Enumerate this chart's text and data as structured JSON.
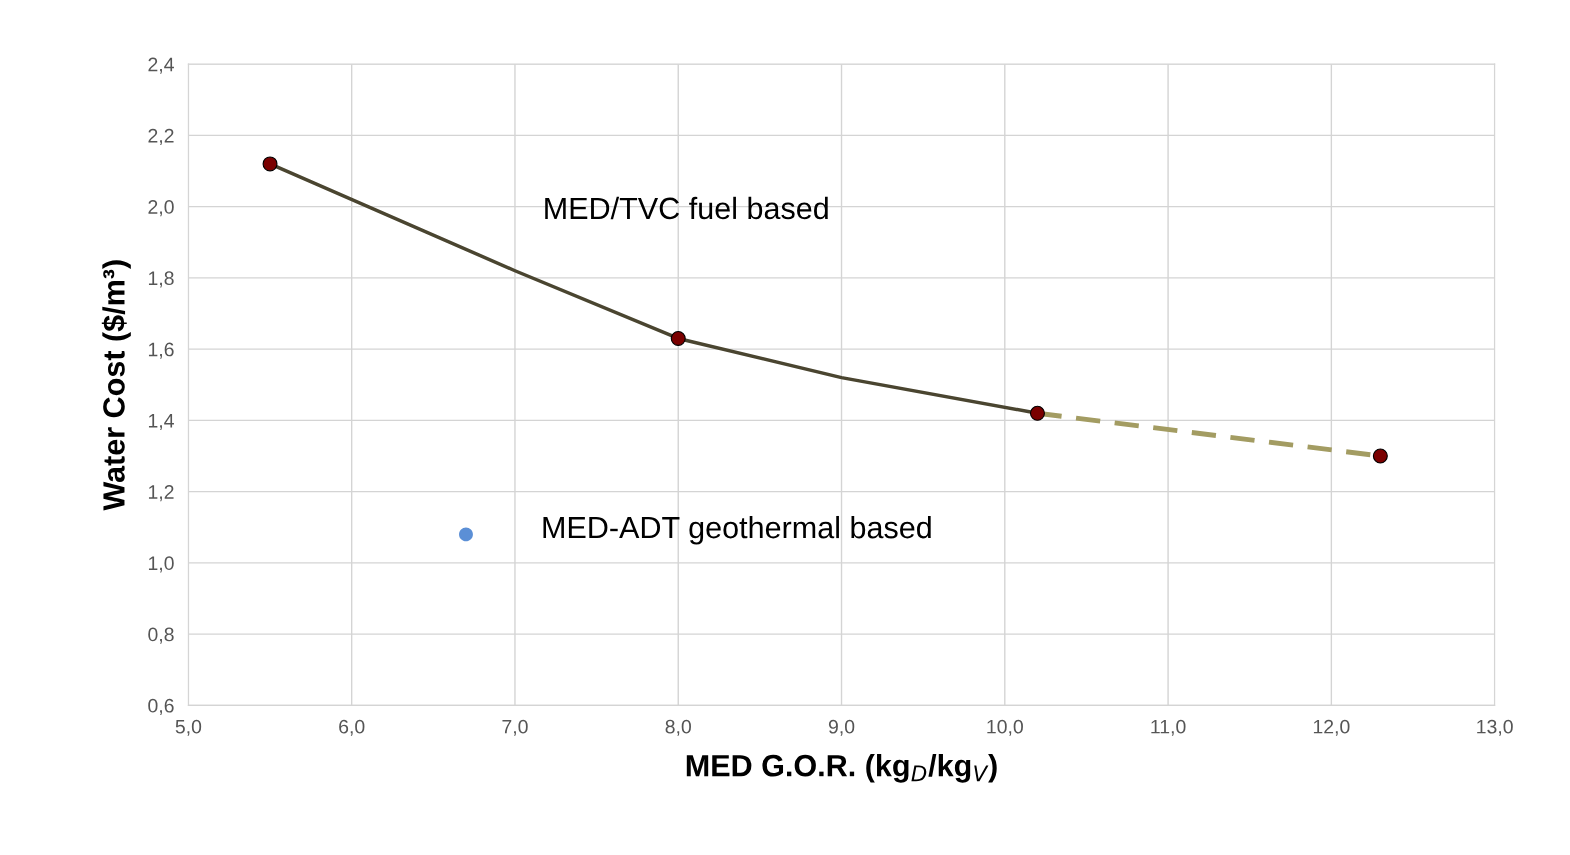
{
  "chart_data": {
    "type": "line",
    "xlabel": "MED G.O.R. (kg$_{D}$/kg$_{V}$)",
    "ylabel": "Water Cost ($/m³)",
    "series": [
      {
        "name": "MED/TVC fuel based",
        "color": "#4a4530",
        "x": [
          5.5,
          7.0,
          8.0,
          9.0,
          10.2
        ],
        "values": [
          2.12,
          1.82,
          1.63,
          1.52,
          1.42
        ],
        "line_style": "solid",
        "marker": "none"
      },
      {
        "color": "#a39c62",
        "x": [
          10.2,
          12.3
        ],
        "values": [
          1.42,
          1.3
        ],
        "line_style": "dashed",
        "marker": "none"
      },
      {
        "type": "scatter",
        "color": "#7a0000",
        "x": [
          5.5,
          8.0,
          10.2,
          12.3
        ],
        "values": [
          2.12,
          1.63,
          1.42,
          1.3
        ],
        "marker": "circle"
      },
      {
        "type": "scatter",
        "name": "MED-ADT geothermal based",
        "color": "#5b8fd6",
        "x": [
          6.7
        ],
        "values": [
          1.08
        ],
        "marker": "circle"
      }
    ],
    "xlim": [
      5.0,
      13.0
    ],
    "xticks": [
      {
        "value": 5.0,
        "label": "5,0"
      },
      {
        "value": 6.0,
        "label": "6,0"
      },
      {
        "value": 7.0,
        "label": "7,0"
      },
      {
        "value": 8.0,
        "label": "8,0"
      },
      {
        "value": 9.0,
        "label": "9,0"
      },
      {
        "value": 10.0,
        "label": "10,0"
      },
      {
        "value": 11.0,
        "label": "11,0"
      },
      {
        "value": 12.0,
        "label": "12,0"
      },
      {
        "value": 13.0,
        "label": "13,0"
      }
    ],
    "ylim": [
      0.6,
      2.4
    ],
    "yticks": [
      {
        "value": 0.6,
        "label": "0,6"
      },
      {
        "value": 0.8,
        "label": "0,8"
      },
      {
        "value": 1.0,
        "label": "1,0"
      },
      {
        "value": 1.2,
        "label": "1,2"
      },
      {
        "value": 1.4,
        "label": "1,4"
      },
      {
        "value": 1.6,
        "label": "1,6"
      },
      {
        "value": 1.8,
        "label": "1,8"
      },
      {
        "value": 2.0,
        "label": "2,0"
      },
      {
        "value": 2.2,
        "label": "2,2"
      },
      {
        "value": 2.4,
        "label": "2,4"
      }
    ],
    "grid": true,
    "legend": false
  }
}
